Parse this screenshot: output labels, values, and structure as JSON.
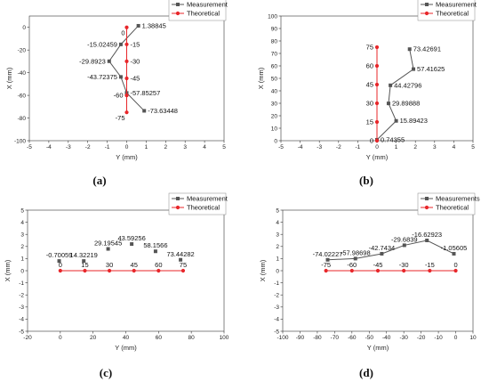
{
  "chart_data": [
    {
      "panel_label": "(a)",
      "type": "line",
      "xlabel": "Y (mm)",
      "ylabel": "X (mm)",
      "xlim": [
        -5,
        5
      ],
      "ylim": [
        -100,
        10
      ],
      "xticks": [
        -5,
        -4,
        -3,
        -2,
        -1,
        0,
        1,
        2,
        3,
        4,
        5
      ],
      "yticks": [
        -100,
        -80,
        -60,
        -40,
        -20,
        0
      ],
      "legend": "top-right",
      "series": [
        {
          "name": "Measurement",
          "color": "#555555",
          "marker": "square",
          "points": [
            [
              0.6,
              1.38845
            ],
            [
              -0.3,
              -15.02459
            ],
            [
              -0.9,
              -29.8923
            ],
            [
              -0.3,
              -43.72375
            ],
            [
              0.0,
              -57.85257
            ],
            [
              0.9,
              -73.63448
            ]
          ]
        },
        {
          "name": "Theoretical",
          "color": "#e8262a",
          "marker": "circle",
          "points": [
            [
              0,
              0
            ],
            [
              0,
              -15
            ],
            [
              0,
              -30
            ],
            [
              0,
              -45
            ],
            [
              0,
              -60
            ],
            [
              0,
              -75
            ]
          ]
        }
      ],
      "data_labels": [
        {
          "text": "1.38845",
          "x": 0.6,
          "y": 1.38845,
          "pos": "right"
        },
        {
          "text": "0",
          "x": 0,
          "y": 0,
          "pos": "below-left"
        },
        {
          "text": "-15.02459",
          "x": -0.3,
          "y": -15.02459,
          "pos": "left"
        },
        {
          "text": "-15",
          "x": 0,
          "y": -15,
          "pos": "right"
        },
        {
          "text": "-29.8923",
          "x": -0.9,
          "y": -29.8923,
          "pos": "left"
        },
        {
          "text": "-30",
          "x": 0,
          "y": -30,
          "pos": "right"
        },
        {
          "text": "-43.72375",
          "x": -0.3,
          "y": -43.72375,
          "pos": "left"
        },
        {
          "text": "-45",
          "x": 0,
          "y": -45,
          "pos": "right"
        },
        {
          "text": "-57.85257",
          "x": 0.0,
          "y": -57.85257,
          "pos": "right"
        },
        {
          "text": "-60",
          "x": 0,
          "y": -60,
          "pos": "left"
        },
        {
          "text": "-73.63448",
          "x": 0.9,
          "y": -73.63448,
          "pos": "right"
        },
        {
          "text": "-75",
          "x": 0,
          "y": -75,
          "pos": "below-left"
        }
      ]
    },
    {
      "panel_label": "(b)",
      "type": "line",
      "xlabel": "Y (mm)",
      "ylabel": "X (mm)",
      "xlim": [
        -5,
        5
      ],
      "ylim": [
        0,
        100
      ],
      "xticks": [
        -5,
        -4,
        -3,
        -2,
        -1,
        0,
        1,
        2,
        3,
        4,
        5
      ],
      "yticks": [
        0,
        10,
        20,
        30,
        40,
        50,
        60,
        70,
        80,
        90,
        100
      ],
      "legend": "top-right",
      "series": [
        {
          "name": "Measurement",
          "color": "#555555",
          "marker": "square",
          "points": [
            [
              0.0,
              0.74355
            ],
            [
              1.0,
              15.89423
            ],
            [
              0.6,
              29.89888
            ],
            [
              0.7,
              44.42796
            ],
            [
              1.9,
              57.41625
            ],
            [
              1.7,
              73.42691
            ]
          ]
        },
        {
          "name": "Theoretical",
          "color": "#e8262a",
          "marker": "circle",
          "points": [
            [
              0,
              0
            ],
            [
              0,
              15
            ],
            [
              0,
              30
            ],
            [
              0,
              45
            ],
            [
              0,
              60
            ],
            [
              0,
              75
            ]
          ]
        }
      ],
      "data_labels": [
        {
          "text": "0",
          "x": 0,
          "y": 0,
          "pos": "left"
        },
        {
          "text": "0.74355",
          "x": 0.0,
          "y": 0.74355,
          "pos": "right"
        },
        {
          "text": "15",
          "x": 0,
          "y": 15,
          "pos": "left"
        },
        {
          "text": "15.89423",
          "x": 1.0,
          "y": 15.89423,
          "pos": "right"
        },
        {
          "text": "30",
          "x": 0,
          "y": 30,
          "pos": "left"
        },
        {
          "text": "29.89888",
          "x": 0.6,
          "y": 29.89888,
          "pos": "right"
        },
        {
          "text": "45",
          "x": 0,
          "y": 45,
          "pos": "left"
        },
        {
          "text": "44.42796",
          "x": 0.7,
          "y": 44.42796,
          "pos": "right"
        },
        {
          "text": "60",
          "x": 0,
          "y": 60,
          "pos": "left"
        },
        {
          "text": "57.41625",
          "x": 1.9,
          "y": 57.41625,
          "pos": "right"
        },
        {
          "text": "75",
          "x": 0,
          "y": 75,
          "pos": "left"
        },
        {
          "text": "73.42691",
          "x": 1.7,
          "y": 73.42691,
          "pos": "right"
        }
      ]
    },
    {
      "panel_label": "(c)",
      "type": "scatter",
      "xlabel": "Y (mm)",
      "ylabel": "X (mm)",
      "xlim": [
        -20,
        100
      ],
      "ylim": [
        -5,
        5
      ],
      "xticks": [
        -20,
        0,
        20,
        40,
        60,
        80,
        100
      ],
      "yticks": [
        -5,
        -4,
        -3,
        -2,
        -1,
        0,
        1,
        2,
        3,
        4,
        5
      ],
      "legend": "top-right",
      "series": [
        {
          "name": "Measurement",
          "color": "#555555",
          "marker": "square",
          "line": false,
          "points": [
            [
              -0.70059,
              0.8
            ],
            [
              14.32219,
              0.8
            ],
            [
              29.19545,
              1.8
            ],
            [
              43.59256,
              2.2
            ],
            [
              58.1566,
              1.6
            ],
            [
              73.44282,
              0.9
            ]
          ]
        },
        {
          "name": "Theoretical",
          "color": "#e8262a",
          "marker": "circle",
          "line": true,
          "points": [
            [
              0,
              0
            ],
            [
              15,
              0
            ],
            [
              30,
              0
            ],
            [
              45,
              0
            ],
            [
              60,
              0
            ],
            [
              75,
              0
            ]
          ]
        }
      ],
      "data_labels": [
        {
          "text": "-0.70059",
          "x": -0.70059,
          "y": 0.8,
          "pos": "above"
        },
        {
          "text": "0",
          "x": 0,
          "y": 0,
          "pos": "above"
        },
        {
          "text": "14.32219",
          "x": 14.32219,
          "y": 0.8,
          "pos": "above"
        },
        {
          "text": "15",
          "x": 15,
          "y": 0,
          "pos": "above"
        },
        {
          "text": "29.19545",
          "x": 29.19545,
          "y": 1.8,
          "pos": "above"
        },
        {
          "text": "30",
          "x": 30,
          "y": 0,
          "pos": "above"
        },
        {
          "text": "43.59256",
          "x": 43.59256,
          "y": 2.2,
          "pos": "above"
        },
        {
          "text": "45",
          "x": 45,
          "y": 0,
          "pos": "above"
        },
        {
          "text": "58.1566",
          "x": 58.1566,
          "y": 1.6,
          "pos": "above"
        },
        {
          "text": "60",
          "x": 60,
          "y": 0,
          "pos": "above"
        },
        {
          "text": "73.44282",
          "x": 73.44282,
          "y": 0.9,
          "pos": "above"
        },
        {
          "text": "75",
          "x": 75,
          "y": 0,
          "pos": "above"
        }
      ]
    },
    {
      "panel_label": "(d)",
      "type": "line",
      "xlabel": "Y (mm)",
      "ylabel": "X (mm)",
      "xlim": [
        -100,
        10
      ],
      "ylim": [
        -5,
        5
      ],
      "xticks": [
        -100,
        -90,
        -80,
        -70,
        -60,
        -50,
        -40,
        -30,
        -20,
        -10,
        0,
        10
      ],
      "yticks": [
        -5,
        -4,
        -3,
        -2,
        -1,
        0,
        1,
        2,
        3,
        4,
        5
      ],
      "legend": "top-right",
      "series": [
        {
          "name": "Measurements",
          "color": "#555555",
          "marker": "square",
          "points": [
            [
              -74.02227,
              0.9
            ],
            [
              -57.98698,
              1.0
            ],
            [
              -42.7434,
              1.4
            ],
            [
              -29.6839,
              2.1
            ],
            [
              -16.62923,
              2.5
            ],
            [
              -1.05605,
              1.4
            ]
          ]
        },
        {
          "name": "Theoretical",
          "color": "#e8262a",
          "marker": "circle",
          "points": [
            [
              -75,
              0
            ],
            [
              -60,
              0
            ],
            [
              -45,
              0
            ],
            [
              -30,
              0
            ],
            [
              -15,
              0
            ],
            [
              0,
              0
            ]
          ]
        }
      ],
      "data_labels": [
        {
          "text": "-74.02227",
          "x": -74.02227,
          "y": 0.9,
          "pos": "above"
        },
        {
          "text": "-75",
          "x": -75,
          "y": 0,
          "pos": "above"
        },
        {
          "text": "-57.98698",
          "x": -57.98698,
          "y": 1.0,
          "pos": "above"
        },
        {
          "text": "-60",
          "x": -60,
          "y": 0,
          "pos": "above"
        },
        {
          "text": "-42.7434",
          "x": -42.7434,
          "y": 1.4,
          "pos": "above"
        },
        {
          "text": "-45",
          "x": -45,
          "y": 0,
          "pos": "above"
        },
        {
          "text": "-29.6839",
          "x": -29.6839,
          "y": 2.1,
          "pos": "above"
        },
        {
          "text": "-30",
          "x": -30,
          "y": 0,
          "pos": "above"
        },
        {
          "text": "-16.62923",
          "x": -16.62923,
          "y": 2.5,
          "pos": "above"
        },
        {
          "text": "-15",
          "x": -15,
          "y": 0,
          "pos": "above"
        },
        {
          "text": "-1.05605",
          "x": -1.05605,
          "y": 1.4,
          "pos": "above"
        },
        {
          "text": "0",
          "x": 0,
          "y": 0,
          "pos": "above"
        }
      ]
    }
  ]
}
